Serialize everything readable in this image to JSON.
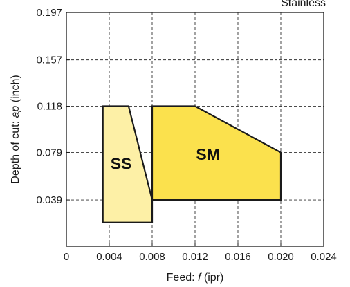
{
  "chart_data": {
    "type": "area",
    "corner_label": "Stainless",
    "xlabel": {
      "prefix": "Feed: ",
      "symbol": "f",
      "suffix": "  (ipr)"
    },
    "ylabel": {
      "prefix": "Depth of cut: ",
      "symbol": "ap",
      "suffix": " (inch)"
    },
    "xlim": [
      0,
      0.024
    ],
    "ylim": [
      0,
      0.197
    ],
    "x_ticks": [
      {
        "value": 0,
        "label": "0"
      },
      {
        "value": 0.004,
        "label": "0.004"
      },
      {
        "value": 0.008,
        "label": "0.008"
      },
      {
        "value": 0.012,
        "label": "0.012"
      },
      {
        "value": 0.016,
        "label": "0.016"
      },
      {
        "value": 0.02,
        "label": "0.020"
      },
      {
        "value": 0.024,
        "label": "0.024"
      }
    ],
    "y_ticks": [
      {
        "value": 0.039,
        "label": "0.039"
      },
      {
        "value": 0.079,
        "label": "0.079"
      },
      {
        "value": 0.118,
        "label": "0.118"
      },
      {
        "value": 0.157,
        "label": "0.157"
      },
      {
        "value": 0.197,
        "label": "0.197"
      }
    ],
    "grid": true,
    "grid_style": "dashed",
    "regions": [
      {
        "name": "SS",
        "fill": "#fdf0a6",
        "stroke": "#1a1a1a",
        "label_at": {
          "x": 0.0051,
          "y": 0.065
        },
        "points": [
          {
            "x": 0.0034,
            "y": 0.118
          },
          {
            "x": 0.0058,
            "y": 0.118
          },
          {
            "x": 0.008,
            "y": 0.039
          },
          {
            "x": 0.008,
            "y": 0.02
          },
          {
            "x": 0.0034,
            "y": 0.02
          }
        ]
      },
      {
        "name": "SM",
        "fill": "#fbe14d",
        "stroke": "#1a1a1a",
        "label_at": {
          "x": 0.0132,
          "y": 0.073
        },
        "points": [
          {
            "x": 0.008,
            "y": 0.118
          },
          {
            "x": 0.012,
            "y": 0.118
          },
          {
            "x": 0.02,
            "y": 0.079
          },
          {
            "x": 0.02,
            "y": 0.039
          },
          {
            "x": 0.008,
            "y": 0.039
          }
        ]
      }
    ]
  }
}
